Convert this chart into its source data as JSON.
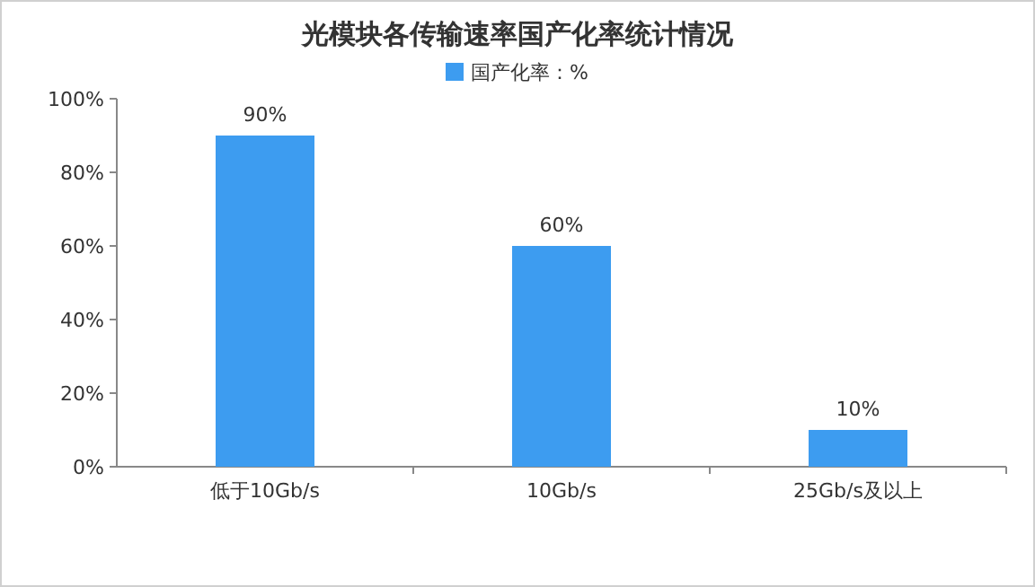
{
  "chart_data": {
    "type": "bar",
    "title": "光模块各传输速率国产化率统计情况",
    "categories": [
      "低于10Gb/s",
      "10Gb/s",
      "25Gb/s及以上"
    ],
    "series": [
      {
        "name": "国产化率：%",
        "color": "#3d9cf0",
        "values": [
          90,
          60,
          10
        ],
        "value_labels": [
          "90%",
          "60%",
          "10%"
        ]
      }
    ],
    "ylim": [
      0,
      100
    ],
    "yticks": [
      {
        "value": 0,
        "label": "0%"
      },
      {
        "value": 20,
        "label": "20%"
      },
      {
        "value": 40,
        "label": "40%"
      },
      {
        "value": 60,
        "label": "60%"
      },
      {
        "value": 80,
        "label": "80%"
      },
      {
        "value": 100,
        "label": "100%"
      }
    ],
    "legend": "top",
    "grid": false
  }
}
